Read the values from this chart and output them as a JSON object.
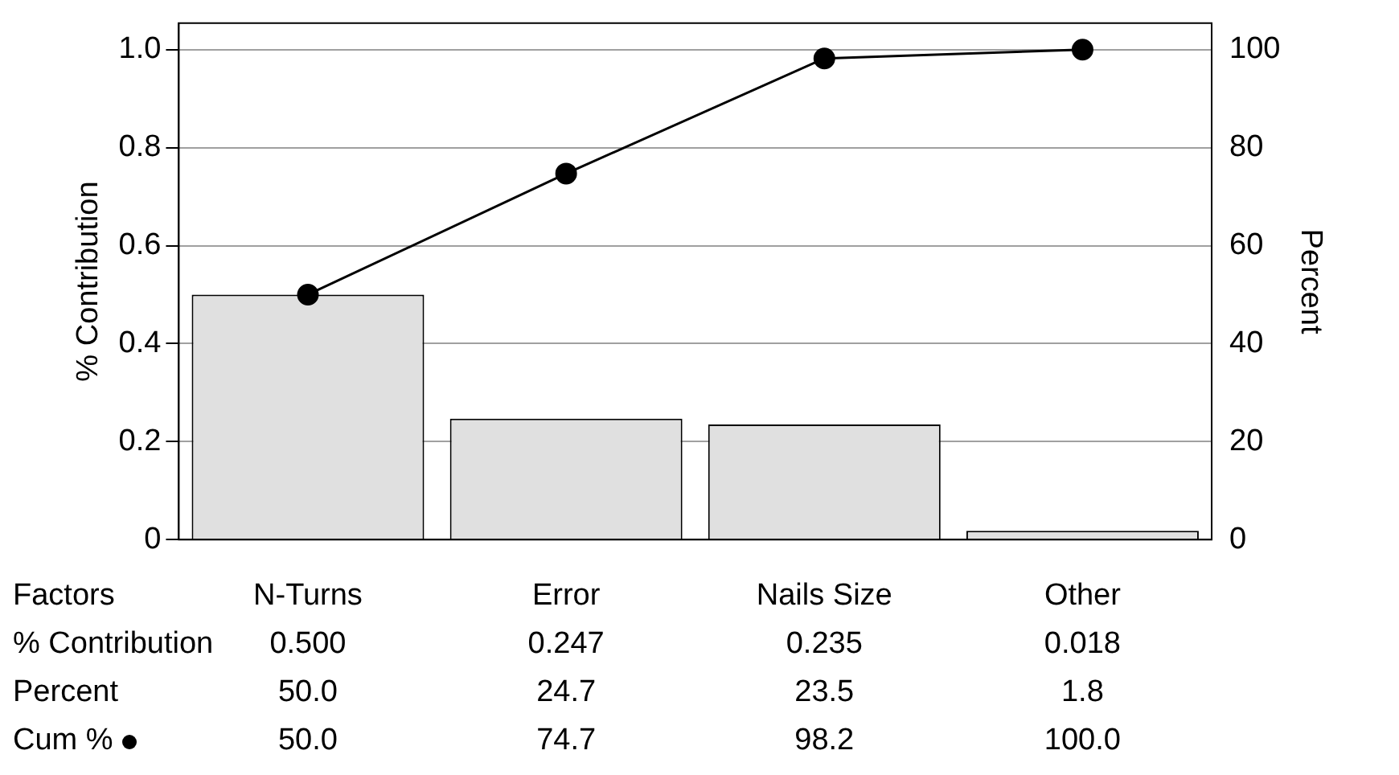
{
  "chart_data": {
    "type": "bar",
    "xlabel": "Factors",
    "ylabel": "% Contribution",
    "y2label": "Percent",
    "categories": [
      "N-Turns",
      "Error",
      "Nails Size",
      "Other"
    ],
    "series": [
      {
        "name": "% Contribution",
        "color": "#e0e0e0",
        "values": [
          0.5,
          0.247,
          0.235,
          0.018
        ],
        "value_labels": [
          "0.500",
          "0.247",
          "0.235",
          "0.018"
        ]
      },
      {
        "name": "Cum %",
        "type": "line",
        "axis": "y2",
        "color": "#000000",
        "marker": "circle",
        "values": [
          50.0,
          74.7,
          98.2,
          100.0
        ],
        "value_labels": [
          "50.0",
          "74.7",
          "98.2",
          "100.0"
        ]
      }
    ],
    "annotations": [
      "Percent",
      "50.0",
      "24.7",
      "23.5",
      "1.8"
    ],
    "ylim": [
      0,
      1.054
    ],
    "yticks": [
      0,
      0.2,
      0.4,
      0.6,
      0.8,
      {
        "value": 1.0,
        "label": "1.0"
      }
    ],
    "y2lim": [
      0,
      105.4
    ],
    "y2ticks": [
      0,
      20,
      40,
      60,
      80,
      100
    ],
    "grid": "y"
  }
}
